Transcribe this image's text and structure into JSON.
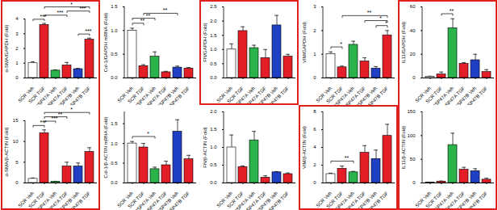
{
  "chart_data": [
    {
      "type": "bar",
      "ylabel": "α-SMA/GAPDH (Fold)",
      "categories": [
        "SCR Veh",
        "SCR TGF",
        "shHSP47A Veh",
        "shHSP47A TGF",
        "shHSP47B Veh",
        "shHSP47B TGF"
      ],
      "values": [
        1.0,
        3.6,
        0.5,
        0.85,
        0.6,
        2.6
      ],
      "errors": [
        0.1,
        0.1,
        0.05,
        0.2,
        0.05,
        0.1
      ],
      "colors": [
        "#ffffff",
        "#e41e26",
        "#2bb34b",
        "#e41e26",
        "#1f3fc4",
        "#e41e26"
      ],
      "ylim": [
        0,
        4
      ],
      "yticks": [
        0,
        1,
        2,
        3,
        4
      ],
      "comparisons": [
        {
          "between": [
            0,
            1
          ],
          "label": "***"
        },
        {
          "between": [
            1,
            5
          ],
          "label": "*"
        },
        {
          "between": [
            1,
            3
          ],
          "label": "***"
        },
        {
          "between": [
            3,
            5
          ],
          "label": "***"
        },
        {
          "between": [
            4,
            5
          ],
          "label": "***"
        }
      ]
    },
    {
      "type": "bar",
      "ylabel": "Col-1/GAPDH mRNA (Fold)",
      "categories": [
        "SCR Veh",
        "SCR TGF",
        "shHSP47A Veh",
        "shHSP47A TGF",
        "shHSP47B Veh",
        "shHSP47B TGF"
      ],
      "values": [
        1.0,
        0.25,
        0.45,
        0.12,
        0.22,
        0.2
      ],
      "errors": [
        0.05,
        0.03,
        0.1,
        0.02,
        0.03,
        0.02
      ],
      "colors": [
        "#ffffff",
        "#e41e26",
        "#2bb34b",
        "#e41e26",
        "#1f3fc4",
        "#e41e26"
      ],
      "ylim": [
        0,
        1.5
      ],
      "yticks": [
        {
          "value": 0,
          "label": "0.0"
        },
        {
          "value": 0.5,
          "label": "0.5"
        },
        {
          "value": 1,
          "label": "1.0"
        },
        {
          "value": 1.5,
          "label": "1.5"
        }
      ],
      "comparisons": [
        {
          "between": [
            0,
            1
          ],
          "label": "**"
        },
        {
          "between": [
            0,
            2
          ],
          "label": "**"
        },
        {
          "between": [
            1,
            4
          ],
          "label": "**"
        }
      ]
    },
    {
      "type": "bar",
      "ylabel": "FN/GAPDH (Fold)",
      "categories": [
        "SCR Veh",
        "SCR TGF",
        "shHSP47A Veh",
        "shHSP47A TGF",
        "shHSP47B Veh",
        "shHSP47B TGF"
      ],
      "values": [
        1.0,
        1.65,
        1.05,
        0.7,
        1.85,
        0.75
      ],
      "errors": [
        0.2,
        0.15,
        0.1,
        0.3,
        0.35,
        0.08
      ],
      "colors": [
        "#ffffff",
        "#e41e26",
        "#2bb34b",
        "#e41e26",
        "#1f3fc4",
        "#e41e26"
      ],
      "ylim": [
        0,
        2.5
      ],
      "yticks": [
        {
          "value": 0,
          "label": "0.0"
        },
        {
          "value": 0.5,
          "label": "0.5"
        },
        {
          "value": 1,
          "label": "1.0"
        },
        {
          "value": 1.5,
          "label": "1.5"
        },
        {
          "value": 2,
          "label": "2.0"
        },
        {
          "value": 2.5,
          "label": "2.5"
        }
      ],
      "comparisons": []
    },
    {
      "type": "bar",
      "ylabel": "VIM/GAPDH (Fold)",
      "categories": [
        "SCR Veh",
        "SCR TGF",
        "shHSP47A Veh",
        "shHSP47A TGF",
        "shHSP47B Veh",
        "shHSP47B TGF"
      ],
      "values": [
        1.0,
        0.45,
        1.4,
        0.7,
        0.4,
        1.8
      ],
      "errors": [
        0.1,
        0.05,
        0.15,
        0.15,
        0.08,
        0.2
      ],
      "colors": [
        "#ffffff",
        "#e41e26",
        "#2bb34b",
        "#e41e26",
        "#1f3fc4",
        "#e41e26"
      ],
      "ylim": [
        0,
        3
      ],
      "yticks": [
        0,
        1,
        2,
        3
      ],
      "comparisons": [
        {
          "between": [
            0,
            1
          ],
          "label": "*"
        },
        {
          "between": [
            1,
            5
          ],
          "label": "**"
        },
        {
          "between": [
            3,
            5
          ],
          "label": "*"
        },
        {
          "between": [
            4,
            5
          ],
          "label": "*"
        }
      ]
    },
    {
      "type": "bar",
      "ylabel": "IL11/GAPDH (Fold)",
      "categories": [
        "SCR Veh",
        "SCR TGF",
        "shHSP47A Veh",
        "shHSP47A TGF",
        "shHSP47B Veh",
        "shHSP47B TGF"
      ],
      "values": [
        1,
        3,
        42,
        12,
        15,
        5
      ],
      "errors": [
        0.5,
        2,
        8,
        1,
        5,
        2
      ],
      "colors": [
        "#ffffff",
        "#e41e26",
        "#2bb34b",
        "#e41e26",
        "#1f3fc4",
        "#e41e26"
      ],
      "ylim": [
        0,
        60
      ],
      "yticks": [
        0,
        20,
        40,
        60
      ],
      "comparisons": [
        {
          "between": [
            1,
            2
          ],
          "label": "**"
        }
      ]
    },
    {
      "type": "bar",
      "ylabel": "α-SMA/β-ACTIN (Fold)",
      "categories": [
        "SCR Veh",
        "SCR TGF",
        "shHSP47A Veh",
        "shHSP47A TGF",
        "shHSP47B Veh",
        "shHSP47B TGF"
      ],
      "values": [
        1,
        12,
        0.3,
        4,
        4,
        7.5
      ],
      "errors": [
        0.2,
        0.8,
        0.1,
        1,
        0.8,
        1
      ],
      "colors": [
        "#ffffff",
        "#e41e26",
        "#2bb34b",
        "#e41e26",
        "#1f3fc4",
        "#e41e26"
      ],
      "ylim": [
        0,
        15
      ],
      "yticks": [
        0,
        5,
        10,
        15
      ],
      "comparisons": [
        {
          "between": [
            0,
            1
          ],
          "label": "***"
        },
        {
          "between": [
            1,
            2
          ],
          "label": "***"
        },
        {
          "between": [
            1,
            3
          ],
          "label": "**"
        },
        {
          "between": [
            1,
            5
          ],
          "label": "*"
        }
      ]
    },
    {
      "type": "bar",
      "ylabel": "Col-1/β-ACTIN mRNA (Fold)",
      "categories": [
        "SCR Veh",
        "SCR TGF",
        "shHSP47A Veh",
        "shHSP47A TGF",
        "shHSP47B Veh",
        "shHSP47B TGF"
      ],
      "values": [
        1.0,
        0.9,
        0.35,
        0.45,
        1.3,
        0.6
      ],
      "errors": [
        0.05,
        0.1,
        0.05,
        0.1,
        0.3,
        0.1
      ],
      "colors": [
        "#ffffff",
        "#e41e26",
        "#2bb34b",
        "#e41e26",
        "#1f3fc4",
        "#e41e26"
      ],
      "ylim": [
        0,
        1.8
      ],
      "yticks": [
        {
          "value": 0,
          "label": "0.0"
        },
        {
          "value": 0.5,
          "label": "0.5"
        },
        {
          "value": 1,
          "label": "1.0"
        },
        {
          "value": 1.5,
          "label": "1.5"
        }
      ],
      "comparisons": [
        {
          "between": [
            0,
            2
          ],
          "label": "*"
        }
      ]
    },
    {
      "type": "bar",
      "ylabel": "FN/β-ACTIN (Fold)",
      "categories": [
        "SCR Veh",
        "SCR TGF",
        "shHSP47A Veh",
        "shHSP47A TGF",
        "shHSP47B Veh",
        "shHSP47B TGF"
      ],
      "values": [
        1.0,
        0.45,
        1.2,
        0.15,
        0.3,
        0.25
      ],
      "errors": [
        0.35,
        0.03,
        0.25,
        0.05,
        0.02,
        0.03
      ],
      "colors": [
        "#ffffff",
        "#e41e26",
        "#2bb34b",
        "#e41e26",
        "#1f3fc4",
        "#e41e26"
      ],
      "ylim": [
        0,
        2
      ],
      "yticks": [
        {
          "value": 0,
          "label": "0.0"
        },
        {
          "value": 0.5,
          "label": "0.5"
        },
        {
          "value": 1,
          "label": "1.0"
        },
        {
          "value": 1.5,
          "label": "1.5"
        },
        {
          "value": 2,
          "label": "2.0"
        }
      ],
      "comparisons": []
    },
    {
      "type": "bar",
      "ylabel": "VIM/β-ACTIN (Fold)",
      "categories": [
        "SCR Veh",
        "SCR TGF",
        "shHSP47A Veh",
        "shHSP47A TGF",
        "shHSP47B Veh",
        "shHSP47B TGF"
      ],
      "values": [
        1,
        1.6,
        1.2,
        3.4,
        2.7,
        5.3
      ],
      "errors": [
        0.1,
        0.3,
        0.1,
        0.8,
        1,
        1.3
      ],
      "colors": [
        "#ffffff",
        "#e41e26",
        "#2bb34b",
        "#e41e26",
        "#1f3fc4",
        "#e41e26"
      ],
      "ylim": [
        0,
        8
      ],
      "yticks": [
        0,
        2,
        4,
        6,
        8
      ],
      "comparisons": [
        {
          "between": [
            0,
            2
          ],
          "label": "**"
        }
      ]
    },
    {
      "type": "bar",
      "ylabel": "IL11/β-ACTIN (Fold)",
      "categories": [
        "SCR Veh",
        "SCR TGF",
        "shHSP47A Veh",
        "shHSP47A TGF",
        "shHSP47B Veh",
        "shHSP47B TGF"
      ],
      "values": [
        1,
        3,
        80,
        28,
        25,
        7
      ],
      "errors": [
        0.5,
        1,
        25,
        5,
        5,
        3
      ],
      "colors": [
        "#ffffff",
        "#e41e26",
        "#2bb34b",
        "#e41e26",
        "#1f3fc4",
        "#e41e26"
      ],
      "ylim": [
        0,
        150
      ],
      "yticks": [
        0,
        50,
        100,
        150
      ],
      "comparisons": []
    }
  ]
}
